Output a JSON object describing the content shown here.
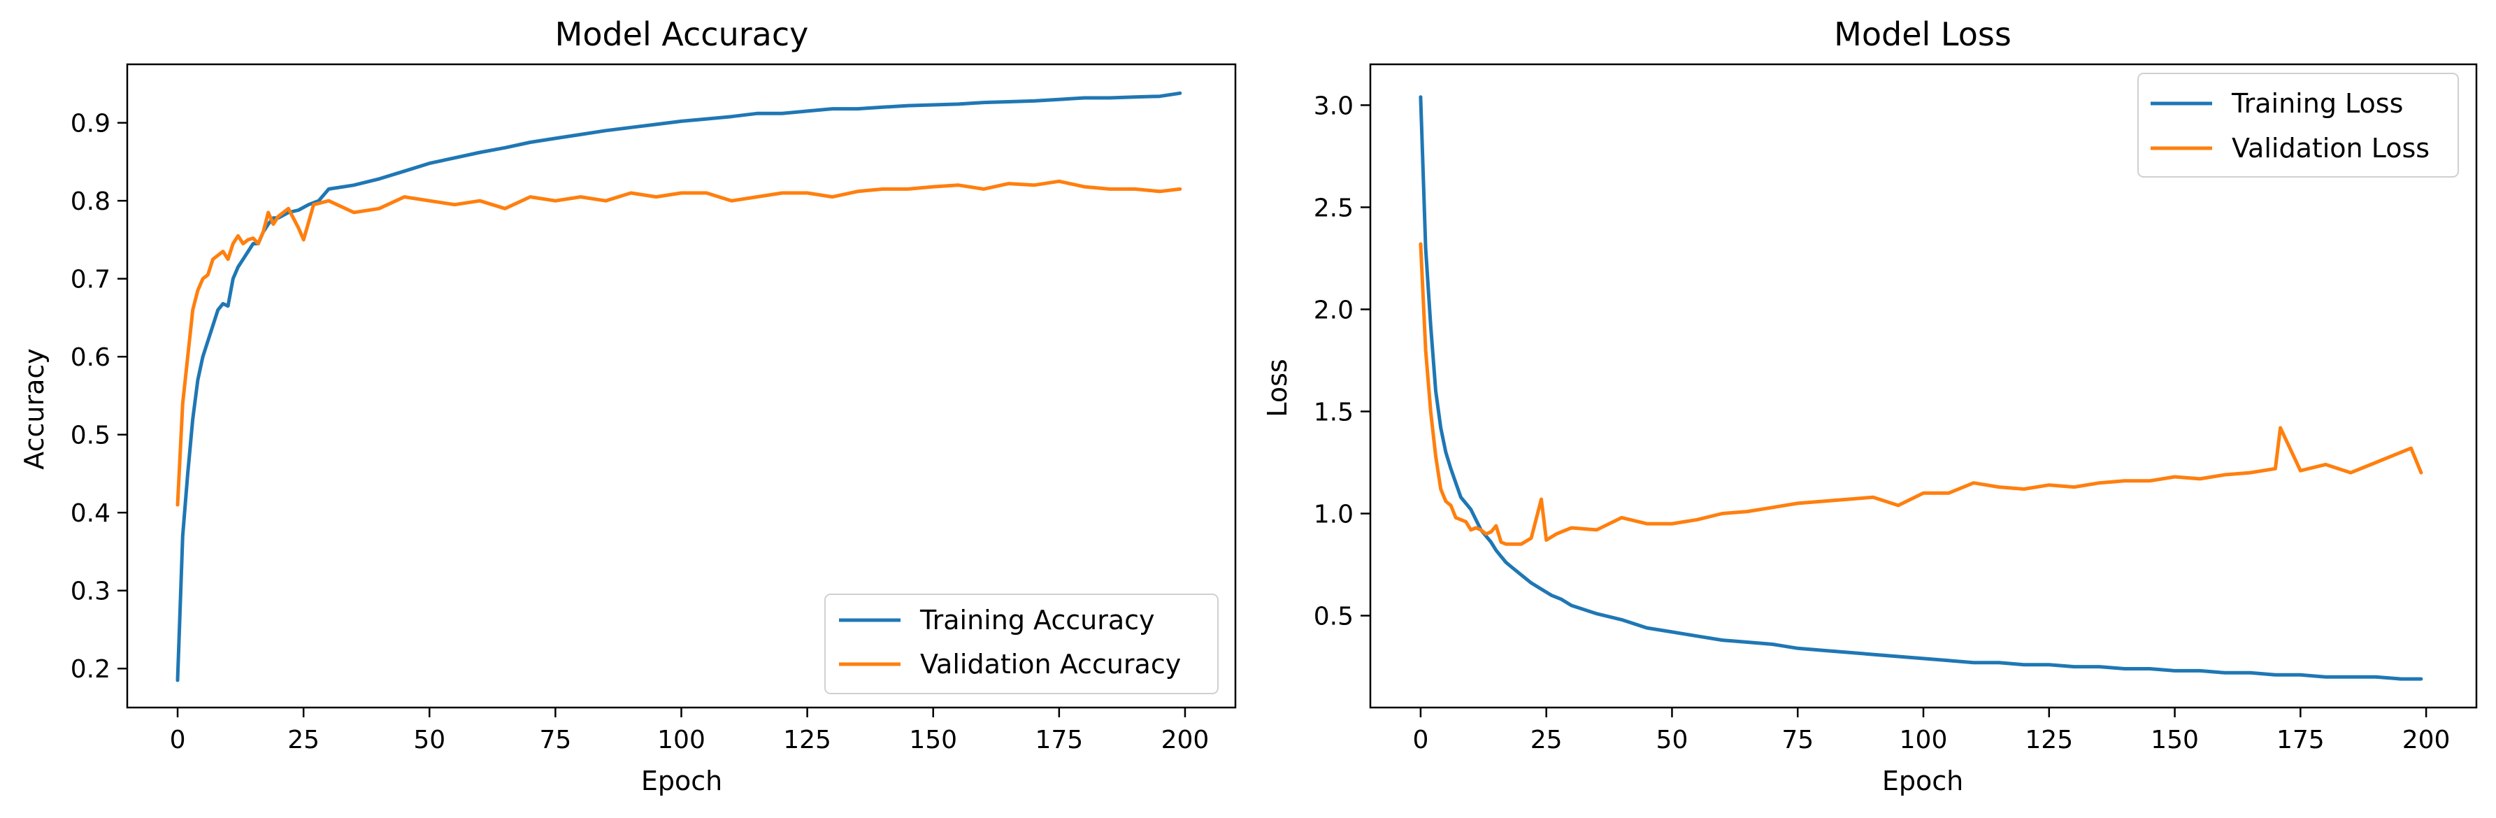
{
  "figure": {
    "train_color": "#1f77b4",
    "val_color": "#ff7f0e"
  },
  "chart_data": [
    {
      "type": "line",
      "title": "Model Accuracy",
      "xlabel": "Epoch",
      "ylabel": "Accuracy",
      "xlim": [
        -10,
        210
      ],
      "ylim": [
        0.15,
        0.975
      ],
      "xticks": [
        0,
        25,
        50,
        75,
        100,
        125,
        150,
        175,
        200
      ],
      "yticks": [
        0.2,
        0.3,
        0.4,
        0.5,
        0.6,
        0.7,
        0.8,
        0.9
      ],
      "ytick_labels": [
        "0.2",
        "0.3",
        "0.4",
        "0.5",
        "0.6",
        "0.7",
        "0.8",
        "0.9"
      ],
      "legend_position": "lower-right",
      "grid": false,
      "series": [
        {
          "name": "Training Accuracy",
          "color": "#1f77b4",
          "x": [
            0,
            1,
            2,
            3,
            4,
            5,
            6,
            7,
            8,
            9,
            10,
            11,
            12,
            13,
            14,
            15,
            16,
            17,
            18,
            19,
            20,
            22,
            24,
            26,
            28,
            30,
            35,
            40,
            45,
            50,
            55,
            60,
            65,
            70,
            75,
            80,
            85,
            90,
            95,
            100,
            105,
            110,
            115,
            120,
            125,
            130,
            135,
            140,
            145,
            150,
            155,
            160,
            165,
            170,
            175,
            180,
            185,
            190,
            195,
            199
          ],
          "y": [
            0.185,
            0.37,
            0.45,
            0.52,
            0.57,
            0.6,
            0.62,
            0.64,
            0.66,
            0.668,
            0.665,
            0.7,
            0.715,
            0.725,
            0.735,
            0.745,
            0.745,
            0.76,
            0.77,
            0.778,
            0.778,
            0.785,
            0.788,
            0.795,
            0.8,
            0.815,
            0.82,
            0.828,
            0.838,
            0.848,
            0.855,
            0.862,
            0.868,
            0.875,
            0.88,
            0.885,
            0.89,
            0.894,
            0.898,
            0.902,
            0.905,
            0.908,
            0.912,
            0.912,
            0.915,
            0.918,
            0.918,
            0.92,
            0.922,
            0.923,
            0.924,
            0.926,
            0.927,
            0.928,
            0.93,
            0.932,
            0.932,
            0.933,
            0.934,
            0.938
          ]
        },
        {
          "name": "Validation Accuracy",
          "color": "#ff7f0e",
          "x": [
            0,
            1,
            2,
            3,
            4,
            5,
            6,
            7,
            8,
            9,
            10,
            11,
            12,
            13,
            14,
            15,
            16,
            17,
            18,
            19,
            20,
            22,
            24,
            25,
            27,
            30,
            35,
            40,
            45,
            50,
            55,
            60,
            65,
            70,
            75,
            80,
            85,
            90,
            95,
            100,
            105,
            110,
            115,
            120,
            125,
            130,
            135,
            140,
            145,
            150,
            155,
            160,
            165,
            170,
            175,
            180,
            185,
            190,
            195,
            199
          ],
          "y": [
            0.41,
            0.54,
            0.6,
            0.66,
            0.685,
            0.7,
            0.705,
            0.725,
            0.73,
            0.735,
            0.725,
            0.745,
            0.755,
            0.745,
            0.75,
            0.752,
            0.745,
            0.76,
            0.785,
            0.77,
            0.78,
            0.79,
            0.765,
            0.75,
            0.795,
            0.8,
            0.785,
            0.79,
            0.805,
            0.8,
            0.795,
            0.8,
            0.79,
            0.805,
            0.8,
            0.805,
            0.8,
            0.81,
            0.805,
            0.81,
            0.81,
            0.8,
            0.805,
            0.81,
            0.81,
            0.805,
            0.812,
            0.815,
            0.815,
            0.818,
            0.82,
            0.815,
            0.822,
            0.82,
            0.825,
            0.818,
            0.815,
            0.815,
            0.812,
            0.815
          ]
        }
      ]
    },
    {
      "type": "line",
      "title": "Model Loss",
      "xlabel": "Epoch",
      "ylabel": "Loss",
      "xlim": [
        -10,
        210
      ],
      "ylim": [
        0.05,
        3.2
      ],
      "xticks": [
        0,
        25,
        50,
        75,
        100,
        125,
        150,
        175,
        200
      ],
      "yticks": [
        0.5,
        1.0,
        1.5,
        2.0,
        2.5,
        3.0
      ],
      "ytick_labels": [
        "0.5",
        "1.0",
        "1.5",
        "2.0",
        "2.5",
        "3.0"
      ],
      "legend_position": "upper-right",
      "grid": false,
      "series": [
        {
          "name": "Training Loss",
          "color": "#1f77b4",
          "x": [
            0,
            1,
            2,
            3,
            4,
            5,
            6,
            7,
            8,
            9,
            10,
            11,
            12,
            13,
            14,
            15,
            16,
            17,
            18,
            19,
            20,
            22,
            24,
            26,
            28,
            30,
            35,
            40,
            45,
            50,
            55,
            60,
            65,
            70,
            75,
            80,
            85,
            90,
            95,
            100,
            105,
            110,
            115,
            120,
            125,
            130,
            135,
            140,
            145,
            150,
            155,
            160,
            165,
            170,
            175,
            180,
            185,
            190,
            195,
            199
          ],
          "y": [
            3.04,
            2.3,
            1.92,
            1.6,
            1.42,
            1.3,
            1.22,
            1.15,
            1.08,
            1.05,
            1.02,
            0.97,
            0.92,
            0.89,
            0.86,
            0.82,
            0.79,
            0.76,
            0.74,
            0.72,
            0.7,
            0.66,
            0.63,
            0.6,
            0.58,
            0.55,
            0.51,
            0.48,
            0.44,
            0.42,
            0.4,
            0.38,
            0.37,
            0.36,
            0.34,
            0.33,
            0.32,
            0.31,
            0.3,
            0.29,
            0.28,
            0.27,
            0.27,
            0.26,
            0.26,
            0.25,
            0.25,
            0.24,
            0.24,
            0.23,
            0.23,
            0.22,
            0.22,
            0.21,
            0.21,
            0.2,
            0.2,
            0.2,
            0.19,
            0.19
          ]
        },
        {
          "name": "Validation Loss",
          "color": "#ff7f0e",
          "x": [
            0,
            1,
            2,
            3,
            4,
            5,
            6,
            7,
            8,
            9,
            10,
            11,
            12,
            13,
            14,
            15,
            16,
            17,
            18,
            19,
            20,
            22,
            24,
            25,
            27,
            30,
            35,
            40,
            45,
            50,
            55,
            60,
            65,
            70,
            75,
            80,
            85,
            90,
            95,
            100,
            105,
            110,
            115,
            120,
            125,
            130,
            135,
            140,
            145,
            150,
            155,
            160,
            165,
            170,
            171,
            175,
            180,
            185,
            190,
            195,
            197,
            199
          ],
          "y": [
            2.32,
            1.8,
            1.5,
            1.28,
            1.12,
            1.06,
            1.04,
            0.98,
            0.97,
            0.96,
            0.92,
            0.93,
            0.92,
            0.9,
            0.91,
            0.94,
            0.86,
            0.85,
            0.85,
            0.85,
            0.85,
            0.88,
            1.07,
            0.87,
            0.9,
            0.93,
            0.92,
            0.98,
            0.95,
            0.95,
            0.97,
            1.0,
            1.01,
            1.03,
            1.05,
            1.06,
            1.07,
            1.08,
            1.04,
            1.1,
            1.1,
            1.15,
            1.13,
            1.12,
            1.14,
            1.13,
            1.15,
            1.16,
            1.16,
            1.18,
            1.17,
            1.19,
            1.2,
            1.22,
            1.42,
            1.21,
            1.24,
            1.2,
            1.25,
            1.3,
            1.32,
            1.2
          ]
        }
      ]
    }
  ]
}
